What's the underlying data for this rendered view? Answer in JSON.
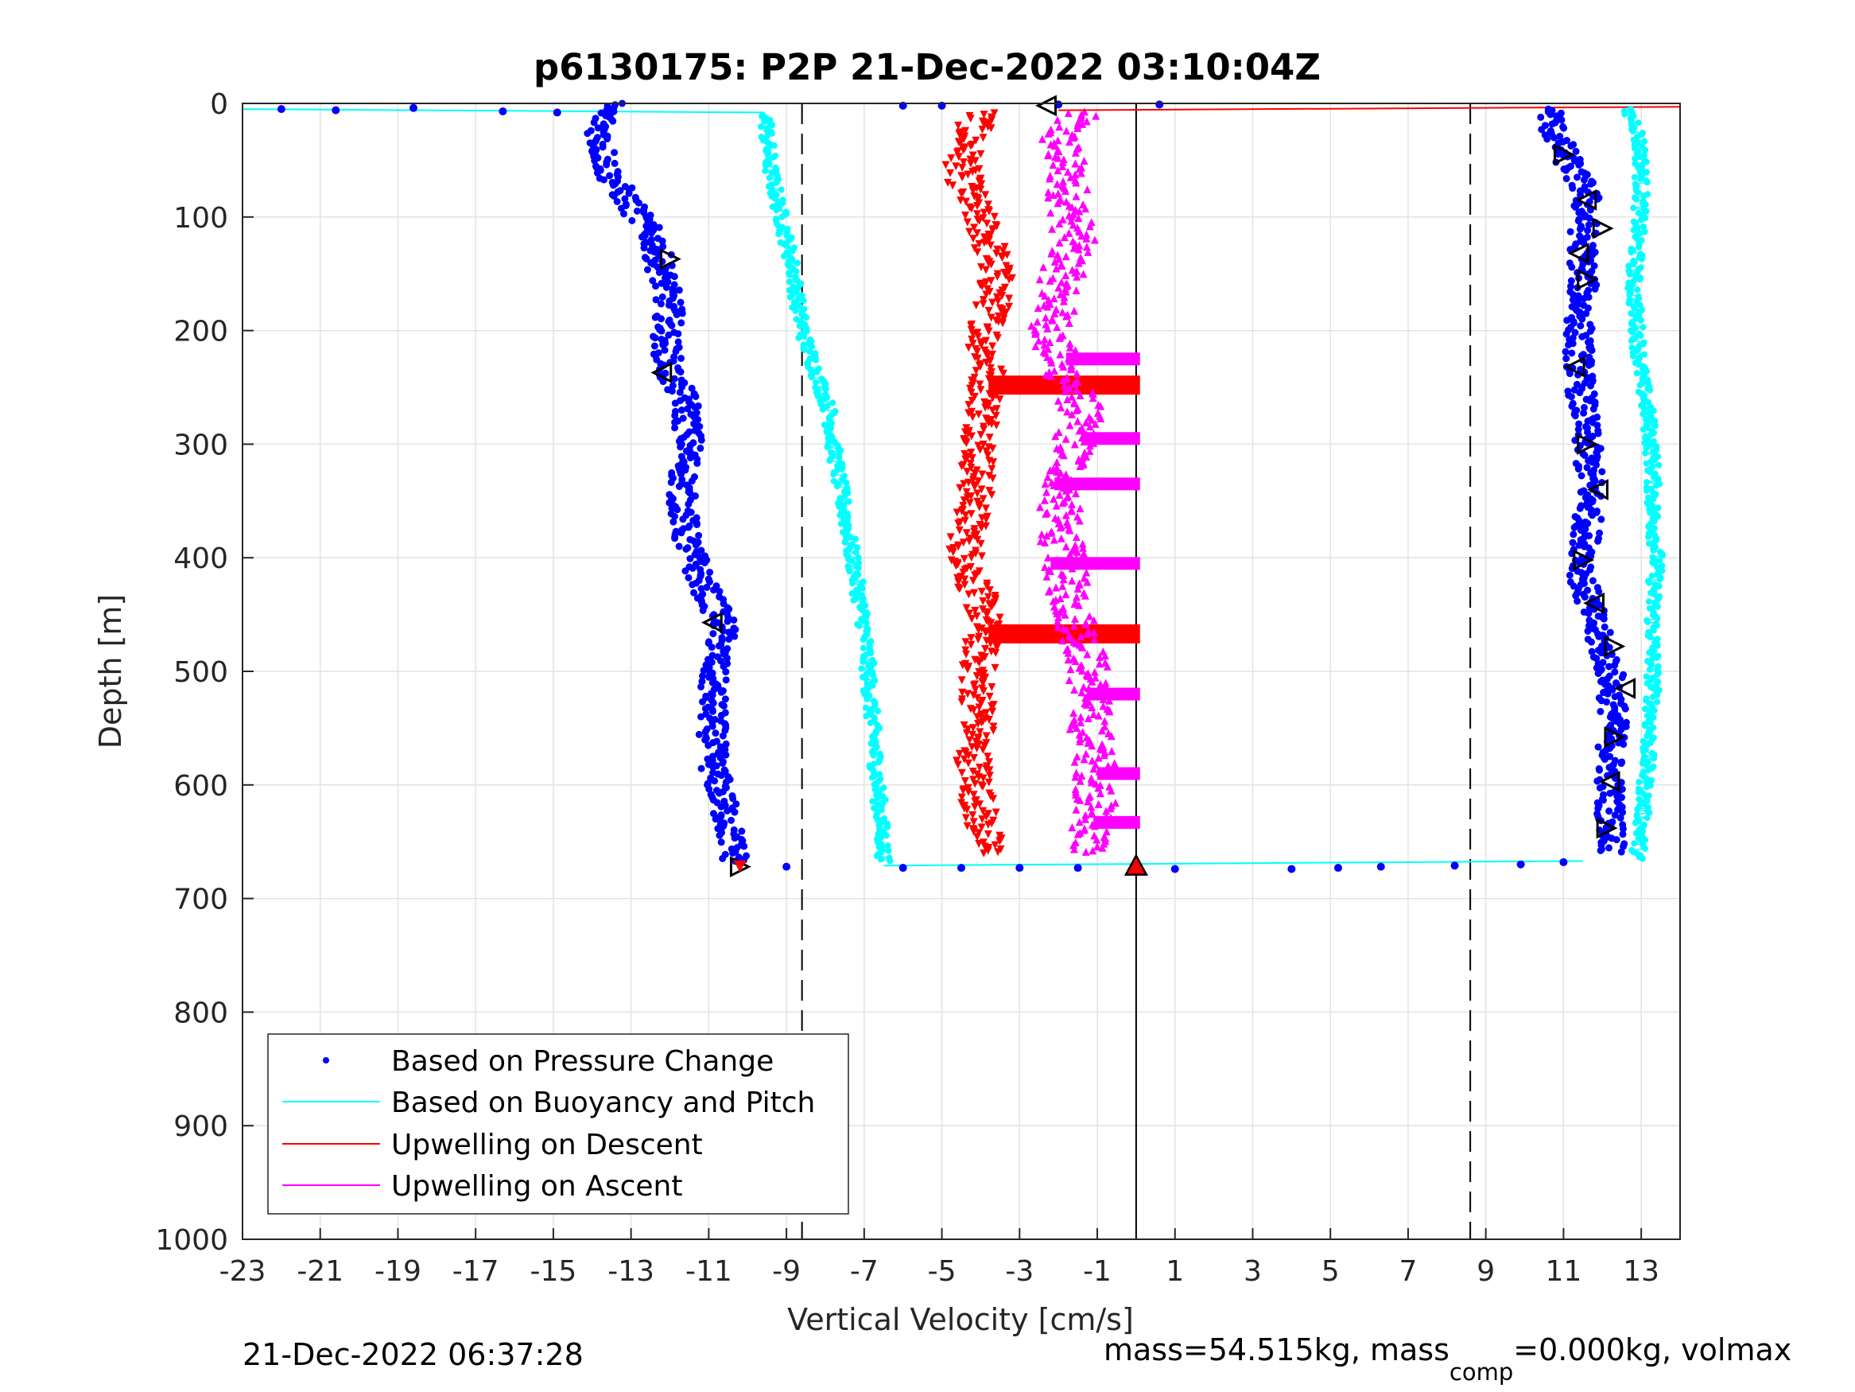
{
  "chart_data": {
    "type": "scatter",
    "title": "p6130175: P2P 21-Dec-2022 03:10:04Z",
    "xlabel": "Vertical Velocity [cm/s]",
    "ylabel": "Depth [m]",
    "xlim": [
      -23,
      14
    ],
    "ylim": [
      0,
      1000
    ],
    "y_reversed": true,
    "grid": true,
    "xticks": [
      -23,
      -21,
      -19,
      -17,
      -15,
      -13,
      -11,
      -9,
      -7,
      -5,
      -3,
      -1,
      1,
      3,
      5,
      7,
      9,
      11,
      13
    ],
    "xtick_labels": [
      "-23",
      "-21",
      "-19",
      "-17",
      "-15",
      "-13",
      "-11",
      "-9",
      "-7",
      "-5",
      "-3",
      "-1",
      "1",
      "3",
      "5",
      "7",
      "9",
      "11",
      "13"
    ],
    "yticks": [
      0,
      100,
      200,
      300,
      400,
      500,
      600,
      700,
      800,
      900,
      1000
    ],
    "ytick_labels": [
      "0",
      "100",
      "200",
      "300",
      "400",
      "500",
      "600",
      "700",
      "800",
      "900",
      "1000"
    ],
    "legend_position": "bottom-left",
    "reference_lines": [
      {
        "x": -8.6,
        "style": "dashed"
      },
      {
        "x": 8.6,
        "style": "dashed"
      },
      {
        "x": 0,
        "style": "solid"
      }
    ],
    "series": [
      {
        "name": "Based on Pressure Change",
        "color": "#0000ff",
        "marker": "dot",
        "profiles": [
          {
            "depth": [
              0,
              10,
              30,
              60,
              90,
              120,
              150,
              180,
              210,
              240,
              260,
              300,
              340,
              380,
              420,
              460,
              500,
              540,
              580,
              620,
              650,
              668
            ],
            "velocity": [
              -13.5,
              -13.7,
              -13.8,
              -13.6,
              -13.0,
              -12.4,
              -12.2,
              -12.0,
              -12.1,
              -12.0,
              -11.6,
              -11.5,
              -11.7,
              -11.6,
              -11.2,
              -10.6,
              -10.9,
              -10.9,
              -10.9,
              -10.6,
              -10.4,
              -10.3
            ]
          },
          {
            "depth": [
              5,
              20,
              50,
              80,
              120,
              160,
              200,
              230,
              270,
              300,
              340,
              380,
              420,
              460,
              500,
              540,
              580,
              620,
              660
            ],
            "velocity": [
              10.7,
              10.7,
              11.1,
              11.6,
              11.5,
              11.5,
              11.4,
              11.4,
              11.5,
              11.6,
              11.7,
              11.6,
              11.5,
              11.8,
              12.2,
              12.3,
              12.2,
              12.2,
              12.3
            ]
          }
        ],
        "outliers": [
          {
            "depth": 5,
            "velocity": -22.0
          },
          {
            "depth": 6,
            "velocity": -20.6
          },
          {
            "depth": 4,
            "velocity": -18.6
          },
          {
            "depth": 7,
            "velocity": -16.3
          },
          {
            "depth": 8,
            "velocity": -14.9
          },
          {
            "depth": 2,
            "velocity": -6.0
          },
          {
            "depth": 2,
            "velocity": -5.0
          },
          {
            "depth": 1,
            "velocity": -2.0
          },
          {
            "depth": 1,
            "velocity": 0.6
          },
          {
            "depth": 672,
            "velocity": -9.0
          },
          {
            "depth": 673,
            "velocity": -6.0
          },
          {
            "depth": 673,
            "velocity": -4.5
          },
          {
            "depth": 673,
            "velocity": -3.0
          },
          {
            "depth": 673,
            "velocity": -1.5
          },
          {
            "depth": 674,
            "velocity": 1.0
          },
          {
            "depth": 674,
            "velocity": 4.0
          },
          {
            "depth": 673,
            "velocity": 5.2
          },
          {
            "depth": 672,
            "velocity": 6.3
          },
          {
            "depth": 671,
            "velocity": 8.2
          },
          {
            "depth": 670,
            "velocity": 9.9
          },
          {
            "depth": 668,
            "velocity": 11.0
          }
        ],
        "triangles": [
          {
            "depth": 2,
            "velocity": -2.3,
            "dir": "left"
          },
          {
            "depth": 137,
            "velocity": -12.0,
            "dir": "right"
          },
          {
            "depth": 237,
            "velocity": -12.2,
            "dir": "left"
          },
          {
            "depth": 457,
            "velocity": -10.9,
            "dir": "left"
          },
          {
            "depth": 672,
            "velocity": -10.2,
            "dir": "right"
          },
          {
            "depth": 45,
            "velocity": 11.0,
            "dir": "right"
          },
          {
            "depth": 85,
            "velocity": 11.6,
            "dir": "left"
          },
          {
            "depth": 110,
            "velocity": 12.0,
            "dir": "right"
          },
          {
            "depth": 132,
            "velocity": 11.4,
            "dir": "left"
          },
          {
            "depth": 155,
            "velocity": 11.6,
            "dir": "right"
          },
          {
            "depth": 232,
            "velocity": 11.3,
            "dir": "left"
          },
          {
            "depth": 300,
            "velocity": 11.6,
            "dir": "right"
          },
          {
            "depth": 340,
            "velocity": 11.9,
            "dir": "left"
          },
          {
            "depth": 402,
            "velocity": 11.5,
            "dir": "right"
          },
          {
            "depth": 440,
            "velocity": 11.8,
            "dir": "left"
          },
          {
            "depth": 478,
            "velocity": 12.3,
            "dir": "right"
          },
          {
            "depth": 515,
            "velocity": 12.6,
            "dir": "left"
          },
          {
            "depth": 558,
            "velocity": 12.3,
            "dir": "right"
          },
          {
            "depth": 597,
            "velocity": 12.2,
            "dir": "left"
          },
          {
            "depth": 638,
            "velocity": 12.1,
            "dir": "right"
          }
        ]
      },
      {
        "name": "Based on Buoyancy and Pitch",
        "color": "#00ffff",
        "marker": "line+dot",
        "profiles": [
          {
            "depth": [
              10,
              30,
              60,
              90,
              120,
              150,
              180,
              210,
              240,
              270,
              300,
              340,
              380,
              420,
              460,
              500,
              540,
              580,
              620,
              660,
              668
            ],
            "velocity": [
              -9.5,
              -9.5,
              -9.4,
              -9.2,
              -9.0,
              -8.8,
              -8.7,
              -8.5,
              -8.2,
              -7.9,
              -7.8,
              -7.6,
              -7.4,
              -7.2,
              -7.0,
              -6.9,
              -6.8,
              -6.7,
              -6.6,
              -6.5,
              -6.5
            ]
          },
          {
            "depth": [
              5,
              20,
              50,
              80,
              120,
              160,
              200,
              240,
              280,
              320,
              360,
              400,
              440,
              480,
              520,
              560,
              600,
              640,
              665
            ],
            "velocity": [
              12.6,
              12.9,
              13.0,
              13.0,
              12.9,
              12.8,
              12.9,
              13.0,
              13.2,
              13.3,
              13.3,
              13.4,
              13.3,
              13.3,
              13.3,
              13.2,
              13.1,
              13.0,
              12.9
            ]
          }
        ],
        "bottom_line": {
          "from": -6.5,
          "to": 11.5,
          "depth_from": 671,
          "depth_to": 667
        },
        "top_line": {
          "from": -23,
          "to": -9.6,
          "depth_from": 5,
          "depth_to": 8
        }
      },
      {
        "name": "Upwelling on Descent",
        "color": "#ff0000",
        "marker": "triangle-down",
        "profiles": [
          {
            "depth": [
              8,
              30,
              60,
              90,
              120,
              150,
              180,
              210,
              240,
              270,
              300,
              330,
              360,
              390,
              420,
              450,
              480,
              510,
              540,
              570,
              600,
              630,
              660
            ],
            "velocity": [
              -4.0,
              -4.3,
              -4.5,
              -4.2,
              -3.8,
              -3.6,
              -3.7,
              -3.9,
              -3.8,
              -3.9,
              -4.0,
              -4.1,
              -4.2,
              -4.4,
              -4.2,
              -3.9,
              -4.0,
              -4.1,
              -4.0,
              -4.2,
              -4.1,
              -4.0,
              -3.8
            ]
          }
        ],
        "bands": [
          {
            "depth": 248,
            "from": -3.8,
            "to": 0.1
          },
          {
            "depth": 467,
            "from": -3.8,
            "to": 0.1
          }
        ],
        "top_line": {
          "from": -2.0,
          "to": 14,
          "depth_from": 6,
          "depth_to": 3
        }
      },
      {
        "name": "Upwelling on Ascent",
        "color": "#ff00ff",
        "marker": "triangle-up",
        "profiles": [
          {
            "depth": [
              8,
              30,
              60,
              90,
              120,
              150,
              180,
              210,
              240,
              270,
              300,
              330,
              360,
              390,
              420,
              450,
              480,
              510,
              540,
              570,
              600,
              630,
              660
            ],
            "velocity": [
              -1.5,
              -2.0,
              -1.8,
              -1.7,
              -1.6,
              -1.9,
              -2.1,
              -2.2,
              -1.8,
              -1.4,
              -1.6,
              -1.8,
              -2.0,
              -1.9,
              -1.8,
              -1.6,
              -1.3,
              -1.2,
              -1.2,
              -1.1,
              -1.0,
              -1.1,
              -1.2
            ]
          }
        ],
        "bands": [
          {
            "depth": 225,
            "from": -1.8,
            "to": 0.1
          },
          {
            "depth": 295,
            "from": -1.4,
            "to": 0.1
          },
          {
            "depth": 335,
            "from": -2.1,
            "to": 0.1
          },
          {
            "depth": 405,
            "from": -2.2,
            "to": 0.1
          },
          {
            "depth": 520,
            "from": -1.2,
            "to": 0.1
          },
          {
            "depth": 590,
            "from": -1.0,
            "to": 0.1
          },
          {
            "depth": 633,
            "from": -1.1,
            "to": 0.1
          }
        ]
      }
    ],
    "end_marker": {
      "depth": 672,
      "velocity": 0,
      "color": "#ff0000"
    }
  },
  "footer": {
    "timestamp": "21-Dec-2022 06:37:28",
    "mass_text_1": "mass=54.515kg, mass",
    "mass_sub": "comp",
    "mass_text_2": "=0.000kg, volmax"
  }
}
